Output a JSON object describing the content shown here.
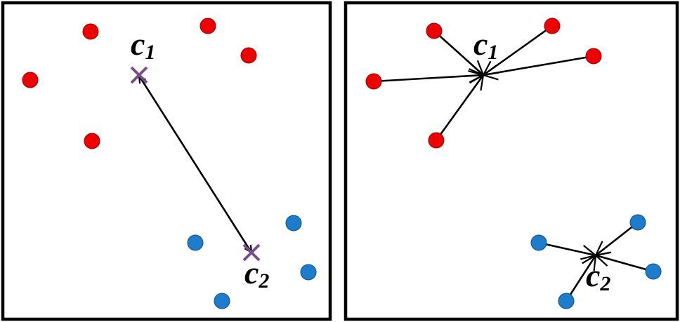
{
  "panels": [
    {
      "id": "left",
      "title": "",
      "centers": [
        {
          "main": "c",
          "sub": "1"
        },
        {
          "main": "c",
          "sub": "2"
        }
      ],
      "cluster_colors": {
        "red": "#ee0000",
        "blue": "#1d7dcc"
      },
      "center_marker_color": "#7a4c8c"
    },
    {
      "id": "right",
      "title": "",
      "centers": [
        {
          "main": "c",
          "sub": "1"
        },
        {
          "main": "c",
          "sub": "2"
        }
      ],
      "cluster_colors": {
        "red": "#ee0000",
        "blue": "#1d7dcc"
      }
    }
  ],
  "icons": {
    "center_marker_left": "x-cross-icon",
    "center_marker_right": "arrow-star-icon"
  }
}
